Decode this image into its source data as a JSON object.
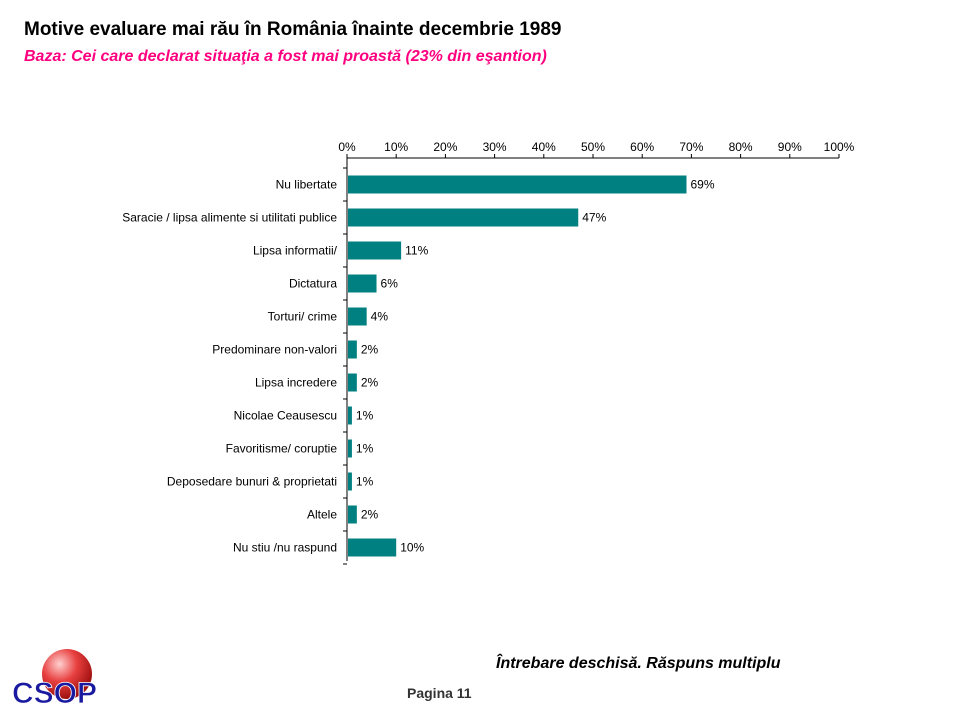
{
  "header": {
    "title": "Motive evaluare mai rău în România înainte decembrie 1989",
    "subtitle": "Baza: Cei care declarat situaţia a fost mai proastă (23% din eşantion)"
  },
  "footer": {
    "note": "Întrebare deschisă. Răspuns multiplu",
    "page": "Pagina  11",
    "logo_text": "CSOP"
  },
  "colors": {
    "bar": "#008080",
    "subtitle": "#ff0080",
    "logo_text": "#1a1aa0",
    "logo_sphere": "#e23030"
  },
  "chart_data": {
    "type": "bar",
    "orientation": "horizontal",
    "categories": [
      "Nu libertate",
      "Saracie / lipsa alimente si utilitati publice",
      "Lipsa informatii/",
      "Dictatura",
      "Torturi/ crime",
      "Predominare non-valori",
      "Lipsa incredere",
      "Nicolae Ceausescu",
      "Favoritisme/ coruptie",
      "Deposedare bunuri & proprietati",
      "Altele",
      "Nu stiu /nu raspund"
    ],
    "values": [
      69,
      47,
      11,
      6,
      4,
      2,
      2,
      1,
      1,
      1,
      2,
      10
    ],
    "value_labels": [
      "69%",
      "47%",
      "11%",
      "6%",
      "4%",
      "2%",
      "2%",
      "1%",
      "1%",
      "1%",
      "2%",
      "10%"
    ],
    "xlim": [
      0,
      100
    ],
    "ticks": [
      "0%",
      "10%",
      "20%",
      "30%",
      "40%",
      "50%",
      "60%",
      "70%",
      "80%",
      "90%",
      "100%"
    ],
    "grid": false,
    "axis_position": "top"
  }
}
